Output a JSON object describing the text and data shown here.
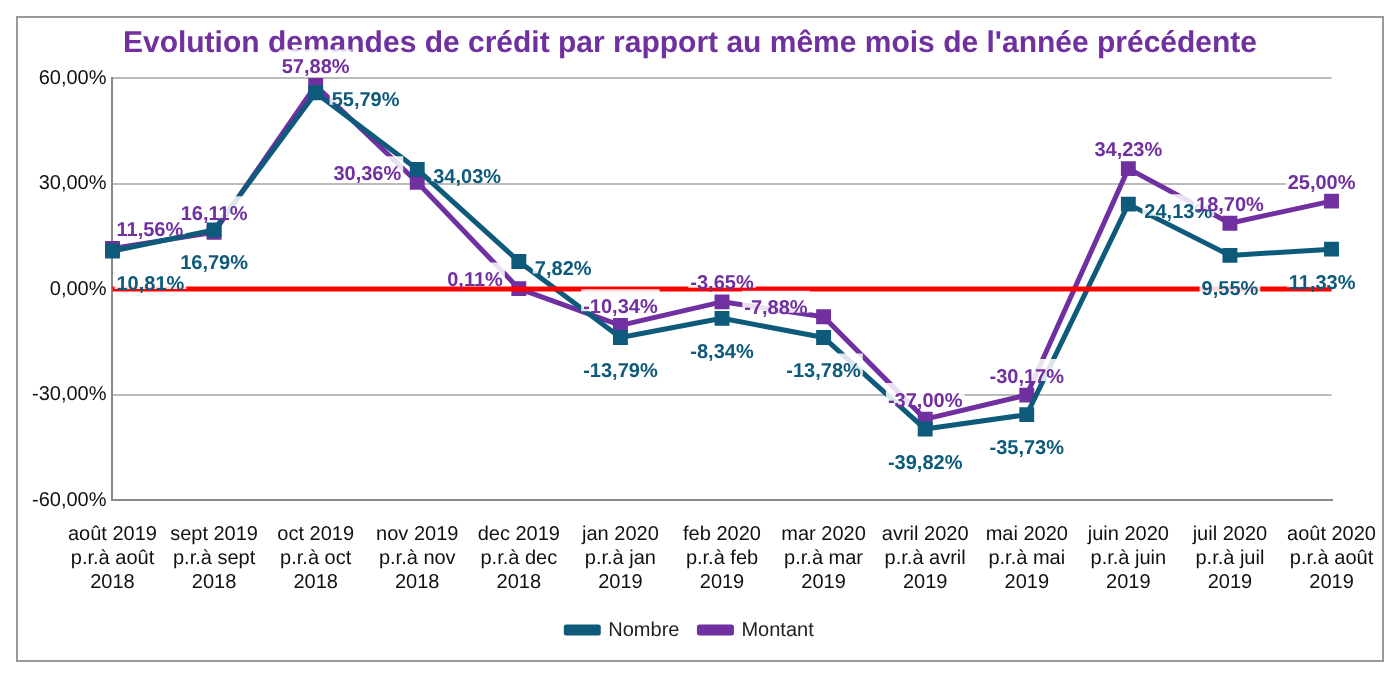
{
  "chart_data": {
    "type": "line",
    "title": "Evolution demandes de crédit par rapport au même mois de l'année précédente",
    "categories": [
      "août 2019\np.r.à août\n2018",
      "sept 2019\np.r.à sept\n2018",
      "oct 2019\np.r.à oct\n2018",
      "nov 2019\np.r.à nov\n2018",
      "dec 2019\np.r.à dec\n2018",
      "jan 2020\np.r.à jan\n2019",
      "feb 2020\np.r.à feb\n2019",
      "mar 2020\np.r.à mar\n2019",
      "avril 2020\np.r.à avril\n2019",
      "mai 2020\np.r.à mai\n2019",
      "juin 2020\np.r.à juin\n2019",
      "juil 2020\np.r.à juil\n2019",
      "août 2020\np.r.à août\n2019"
    ],
    "series": [
      {
        "name": "Nombre",
        "color": "#0e5a7a",
        "values": [
          10.81,
          16.79,
          55.79,
          34.03,
          7.82,
          -13.79,
          -8.34,
          -13.78,
          -39.82,
          -35.73,
          24.13,
          9.55,
          11.33
        ],
        "value_labels": [
          "10,81%",
          "16,79%",
          "55,79%",
          "34,03%",
          "7,82%",
          "-13,79%",
          "-8,34%",
          "-13,78%",
          "-39,82%",
          "-35,73%",
          "24,13%",
          "9,55%",
          "11,33%"
        ]
      },
      {
        "name": "Montant",
        "color": "#7030a0",
        "values": [
          11.56,
          16.11,
          57.88,
          30.36,
          0.11,
          -10.34,
          -3.65,
          -7.88,
          -37.0,
          -30.17,
          34.23,
          18.7,
          25.0
        ],
        "value_labels": [
          "11,56%",
          "16,11%",
          "57,88%",
          "30,36%",
          "0,11%",
          "-10,34%",
          "-3,65%",
          "-7,88%",
          "-37,00%",
          "-30,17%",
          "34,23%",
          "18,70%",
          "25,00%"
        ]
      }
    ],
    "ylim": [
      -60,
      60
    ],
    "yticks": [
      {
        "value": -60,
        "label": "-60,00%"
      },
      {
        "value": -30,
        "label": "-30,00%"
      },
      {
        "value": 0,
        "label": "0,00%"
      },
      {
        "value": 30,
        "label": "30,00%"
      },
      {
        "value": 60,
        "label": "60,00%"
      }
    ],
    "ref_lines": [
      {
        "axis": "y",
        "value": 0,
        "color": "#ff0000"
      }
    ],
    "grid": "y",
    "legend": "bottom",
    "marker": "square",
    "line_style": "solid"
  }
}
